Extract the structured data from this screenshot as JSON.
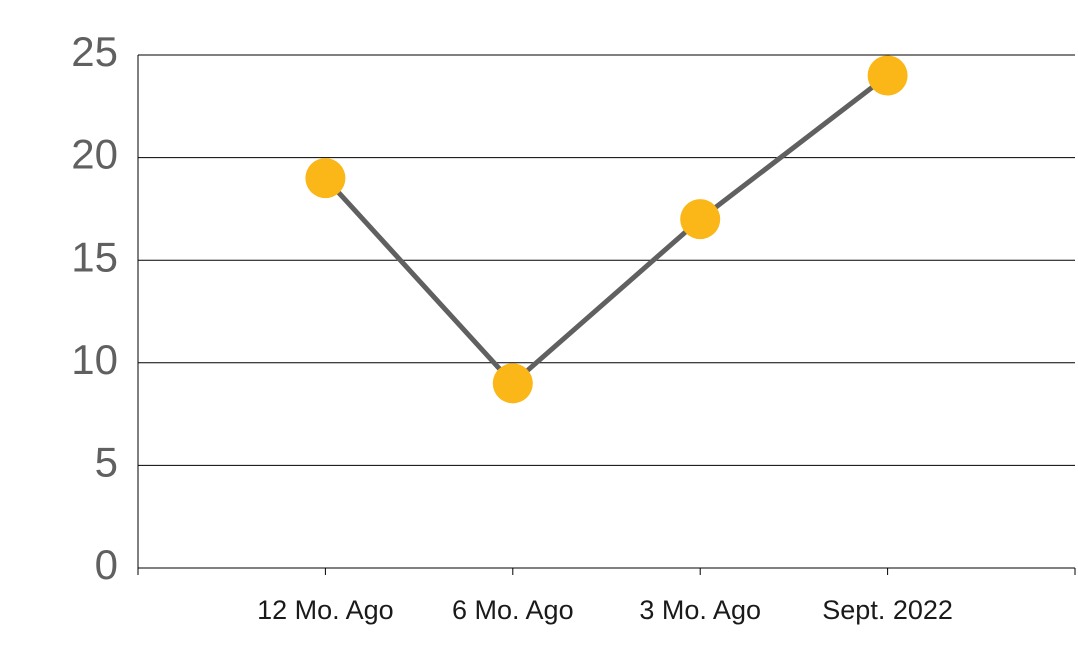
{
  "chart_data": {
    "type": "line",
    "categories": [
      "12 Mo. Ago",
      "6 Mo. Ago",
      "3 Mo. Ago",
      "Sept. 2022"
    ],
    "values": [
      19,
      9,
      17,
      24
    ],
    "line_color": "#606060",
    "marker_color": "#fbb617",
    "ylim": [
      0,
      25
    ],
    "yticks": [
      0,
      5,
      10,
      15,
      20,
      25
    ],
    "grid": true
  }
}
